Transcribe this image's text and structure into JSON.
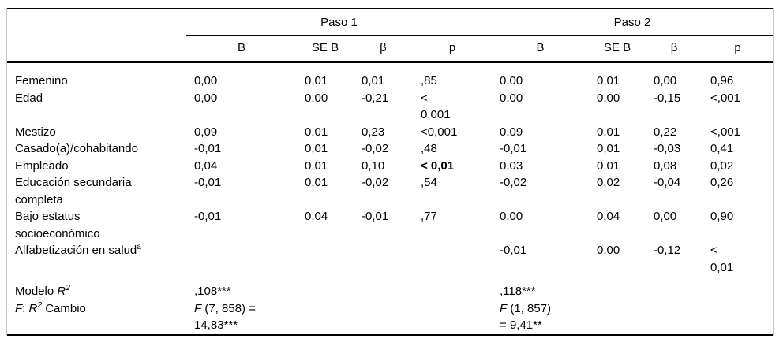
{
  "table": {
    "spanners": [
      {
        "label": "Paso 1"
      },
      {
        "label": "Paso 2"
      }
    ],
    "col_headers": [
      "B",
      "SE B",
      "β",
      "p",
      "B",
      "SE B",
      "β",
      "p"
    ],
    "rows": [
      {
        "label": "Femenino",
        "cells": [
          "0,00",
          "0,01",
          "0,01",
          ",85",
          "0,00",
          "0,01",
          "0,00",
          "0,96"
        ]
      },
      {
        "label": "Edad",
        "cells": [
          "0,00",
          "0,00",
          "-0,21",
          "<\n0,001",
          "0,00",
          "0,00",
          "-0,15",
          "<,001"
        ]
      },
      {
        "label": "Mestizo",
        "cells": [
          "0,09",
          "0,01",
          "0,23",
          "<0,001",
          "0,09",
          "0,01",
          "0,22",
          "<,001"
        ]
      },
      {
        "label": "Casado(a)/cohabitando",
        "cells": [
          "-0,01",
          "0,01",
          "-0,02",
          ",48",
          "-0,01",
          "0,01",
          "-0,03",
          "0,41"
        ]
      },
      {
        "label": "Empleado",
        "cells": [
          "0,04",
          "0,01",
          "0,10",
          {
            "text": "< 0,01",
            "bold": true
          },
          "0,03",
          "0,01",
          "0,08",
          "0,02"
        ]
      },
      {
        "label": "Educación secundaria\ncompleta",
        "cells": [
          "-0,01",
          "0,01",
          "-0,02",
          ",54",
          "-0,02",
          "0,02",
          "-0,04",
          "0,26"
        ]
      },
      {
        "label": "Bajo estatus\nsocioeconómico",
        "cells": [
          "-0,01",
          "0,04",
          "-0,01",
          ",77",
          "0,00",
          "0,04",
          "0,00",
          "0,90"
        ]
      },
      {
        "label_parts": [
          {
            "text": "Alfabetización en salud"
          },
          {
            "text": "a",
            "sup": true
          }
        ],
        "cells": [
          "",
          "",
          "",
          "",
          "-0,01",
          "0,00",
          "-0,12",
          "<\n0,01"
        ]
      },
      {
        "spacer_above": true,
        "label_parts": [
          {
            "text": "Modelo "
          },
          {
            "text": "R",
            "italic": true
          },
          {
            "text": "2",
            "italic": true,
            "sup": true
          }
        ],
        "cells": [
          ",108***",
          "",
          "",
          "",
          ",118***",
          "",
          "",
          ""
        ]
      },
      {
        "label_parts": [
          {
            "text": "F",
            "italic": true
          },
          {
            "text": ": "
          },
          {
            "text": "R",
            "italic": true
          },
          {
            "text": "2",
            "italic": true,
            "sup": true
          },
          {
            "text": " Cambio"
          }
        ],
        "cells": [
          {
            "parts": [
              {
                "text": "F",
                "italic": true
              },
              {
                "text": " (7, 858) =\n14,83***"
              }
            ]
          },
          "",
          "",
          "",
          {
            "parts": [
              {
                "text": "F",
                "italic": true
              },
              {
                "text": " (1, 857)\n= 9,41**"
              }
            ]
          },
          "",
          "",
          ""
        ]
      }
    ]
  }
}
